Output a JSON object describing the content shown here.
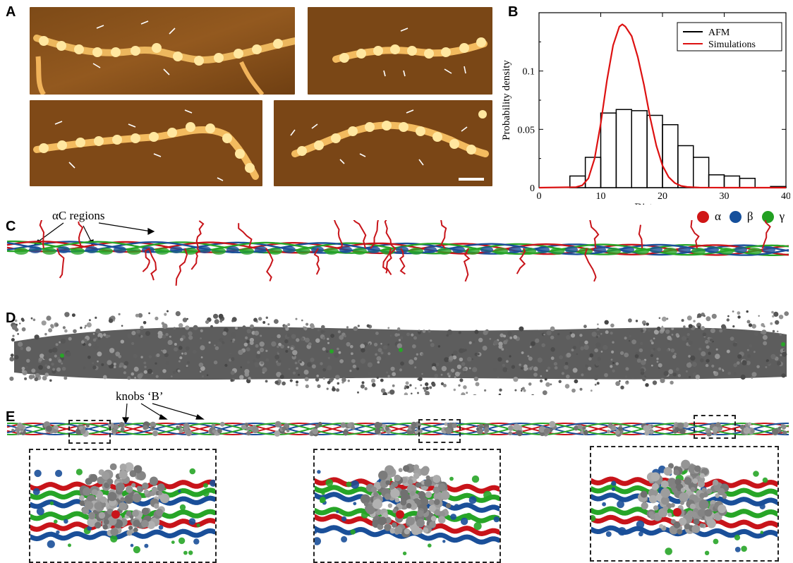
{
  "panels": {
    "a": "A",
    "b": "B",
    "c": "C",
    "d": "D",
    "e": "E"
  },
  "chart_data": {
    "type": "bar",
    "title": "",
    "xlabel": "Distance, nm",
    "ylabel": "Probability density",
    "xlim": [
      0,
      40
    ],
    "ylim": [
      0,
      0.15
    ],
    "xticks": [
      0,
      10,
      20,
      30,
      40
    ],
    "yticks": [
      0,
      0.05,
      0.1
    ],
    "ytick_labels": [
      "0",
      "0.05",
      "0.1"
    ],
    "legend_position": "top-right",
    "series": [
      {
        "name": "AFM",
        "kind": "histogram",
        "color": "#000000",
        "bins": [
          {
            "x0": 5,
            "x1": 7.5,
            "y": 0.01
          },
          {
            "x0": 7.5,
            "x1": 10,
            "y": 0.026
          },
          {
            "x0": 10,
            "x1": 12.5,
            "y": 0.064
          },
          {
            "x0": 12.5,
            "x1": 15,
            "y": 0.067
          },
          {
            "x0": 15,
            "x1": 17.5,
            "y": 0.066
          },
          {
            "x0": 17.5,
            "x1": 20,
            "y": 0.062
          },
          {
            "x0": 20,
            "x1": 22.5,
            "y": 0.054
          },
          {
            "x0": 22.5,
            "x1": 25,
            "y": 0.036
          },
          {
            "x0": 25,
            "x1": 27.5,
            "y": 0.026
          },
          {
            "x0": 27.5,
            "x1": 30,
            "y": 0.011
          },
          {
            "x0": 30,
            "x1": 32.5,
            "y": 0.01
          },
          {
            "x0": 32.5,
            "x1": 35,
            "y": 0.008
          },
          {
            "x0": 37.5,
            "x1": 40,
            "y": 0.001
          }
        ]
      },
      {
        "name": "Simulations",
        "kind": "line",
        "color": "#dd1111",
        "x": [
          0,
          6,
          7,
          8,
          9,
          10,
          11,
          12,
          13,
          13.5,
          14,
          15,
          16,
          17,
          18,
          19,
          20,
          21,
          22,
          23,
          24,
          26,
          30,
          40
        ],
        "y": [
          0,
          0.0005,
          0.002,
          0.008,
          0.025,
          0.055,
          0.092,
          0.122,
          0.138,
          0.14,
          0.138,
          0.13,
          0.112,
          0.088,
          0.06,
          0.036,
          0.019,
          0.009,
          0.004,
          0.0015,
          0.0006,
          0.0001,
          0,
          0
        ]
      }
    ]
  },
  "annotations": {
    "ac_regions": "αC regions",
    "knobs_b": "knobs ‘B’"
  },
  "legend_chains": [
    {
      "label": "α",
      "color": "#d01616"
    },
    {
      "label": "β",
      "color": "#154f9b"
    },
    {
      "label": "γ",
      "color": "#22a022"
    }
  ],
  "colors": {
    "alpha": "#c8141a",
    "beta": "#1a4f99",
    "gamma": "#27a527",
    "knob_gray": "#7a7a7a",
    "afm_dark": "#6b3a10",
    "afm_bright": "#ffe9a6"
  }
}
